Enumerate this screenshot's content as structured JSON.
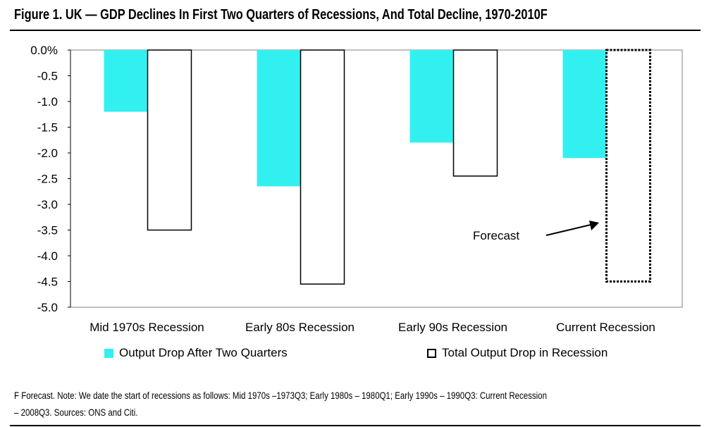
{
  "figure": {
    "title": "Figure 1. UK — GDP Declines In First Two Quarters of Recessions, And Total Decline, 1970-2010F",
    "footnote_line1": "F Forecast. Note: We date the start of recessions as follows: Mid 1970s –1973Q3; Early 1980s – 1980Q1; Early 1990s – 1990Q3: Current Recession",
    "footnote_line2": "– 2008Q3. Sources: ONS and Citi."
  },
  "chart_data": {
    "type": "bar",
    "title": "Figure 1. UK — GDP Declines In First Two Quarters of Recessions, And Total Decline, 1970-2010F",
    "xlabel": "",
    "ylabel": "",
    "categories": [
      "Mid 1970s Recession",
      "Early 80s Recession",
      "Early 90s Recession",
      "Current Recession"
    ],
    "series": [
      {
        "name": "Output Drop After Two Quarters",
        "values": [
          -1.2,
          -2.65,
          -1.8,
          -2.1
        ],
        "color": "#33f0f0"
      },
      {
        "name": "Total Output Drop in Recession",
        "values": [
          -3.5,
          -4.55,
          -2.45,
          -4.5
        ],
        "color": "#ffffff",
        "forecast_flags": [
          false,
          false,
          false,
          true
        ]
      }
    ],
    "ylim": [
      -5.0,
      0.0
    ],
    "y_ticks": [
      "0.0%",
      "-0.5",
      "-1.0",
      "-1.5",
      "-2.0",
      "-2.5",
      "-3.0",
      "-3.5",
      "-4.0",
      "-4.5",
      "-5.0"
    ],
    "y_tick_values": [
      0.0,
      -0.5,
      -1.0,
      -1.5,
      -2.0,
      -2.5,
      -3.0,
      -3.5,
      -4.0,
      -4.5,
      -5.0
    ],
    "grid": false,
    "legend_position": "bottom",
    "annotations": [
      {
        "text": "Forecast",
        "points_to": "Current Recession"
      }
    ]
  }
}
